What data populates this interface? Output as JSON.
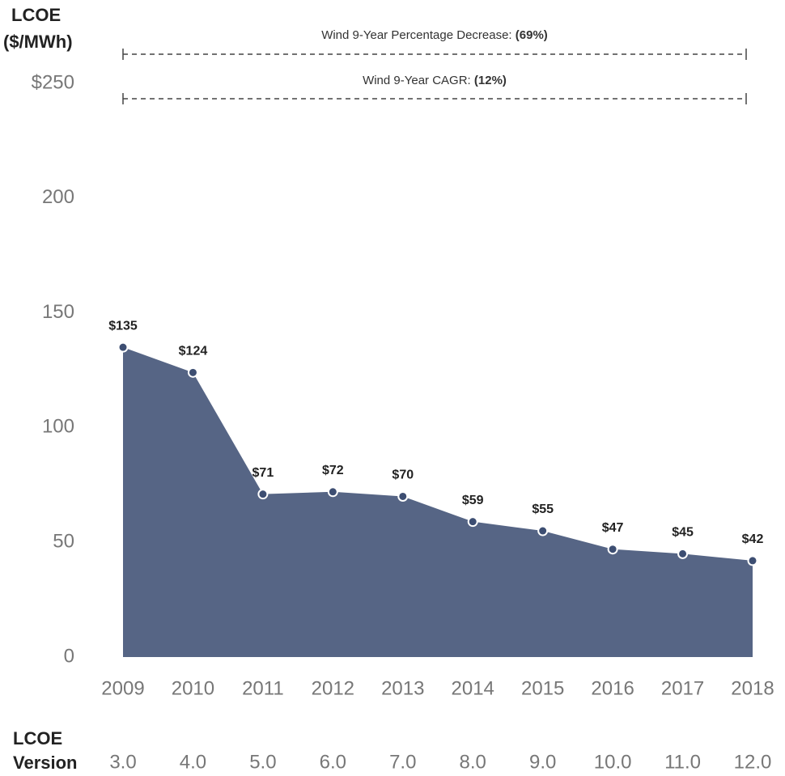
{
  "chart_data": {
    "type": "area",
    "ylabel_lines": [
      "LCOE",
      "($/MWh)"
    ],
    "categories": [
      "2009",
      "2010",
      "2011",
      "2012",
      "2013",
      "2014",
      "2015",
      "2016",
      "2017",
      "2018"
    ],
    "values": [
      135,
      124,
      71,
      72,
      70,
      59,
      55,
      47,
      45,
      42
    ],
    "value_labels": [
      "$135",
      "$124",
      "$71",
      "$72",
      "$70",
      "$59",
      "$55",
      "$47",
      "$45",
      "$42"
    ],
    "color": "#566585",
    "marker_color": "#3d4e72",
    "ylim": [
      0,
      250
    ],
    "yticks": [
      0,
      50,
      100,
      150,
      {
        "value": 250,
        "label": "$250"
      },
      200
    ],
    "annotations": [
      {
        "text": "Wind 9-Year Percentage Decrease:",
        "value": "(69%)"
      },
      {
        "text": "Wind 9-Year CAGR:",
        "value": "(12%)"
      }
    ],
    "version_label_lines": [
      "LCOE",
      "Version"
    ],
    "versions": [
      "3.0",
      "4.0",
      "5.0",
      "6.0",
      "7.0",
      "8.0",
      "9.0",
      "10.0",
      "11.0",
      "12.0"
    ]
  }
}
